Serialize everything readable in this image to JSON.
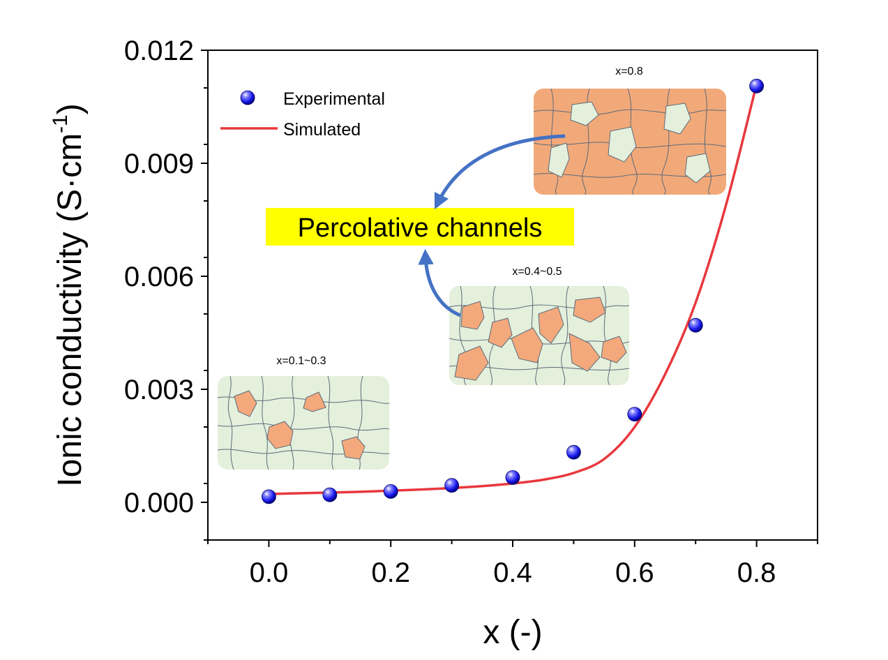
{
  "chart_data": {
    "type": "scatter",
    "xlabel": "x (-)",
    "ylabel_main": "Ionic conductivity (S·cm",
    "ylabel_sup": "-1",
    "ylabel_close": ")",
    "xlim": [
      -0.1,
      0.9
    ],
    "ylim": [
      -0.001,
      0.012
    ],
    "x_ticks": [
      "0.0",
      "0.2",
      "0.4",
      "0.6",
      "0.8"
    ],
    "x_tick_values": [
      0.0,
      0.2,
      0.4,
      0.6,
      0.8
    ],
    "y_ticks": [
      "0.000",
      "0.003",
      "0.006",
      "0.009",
      "0.012"
    ],
    "y_tick_values": [
      0.0,
      0.003,
      0.006,
      0.009,
      0.012
    ],
    "series": [
      {
        "name": "Experimental",
        "kind": "scatter",
        "color": "#1a1aee",
        "x": [
          0.0,
          0.1,
          0.2,
          0.3,
          0.4,
          0.5,
          0.6,
          0.7,
          0.8
        ],
        "y": [
          0.00015,
          0.0002,
          0.00029,
          0.00045,
          0.00066,
          0.00133,
          0.00234,
          0.0047,
          0.01105
        ]
      },
      {
        "name": "Simulated",
        "kind": "line",
        "color": "#e8383d",
        "x": [
          0.0,
          0.05,
          0.1,
          0.15,
          0.2,
          0.25,
          0.3,
          0.35,
          0.4,
          0.45,
          0.5,
          0.55,
          0.6,
          0.65,
          0.7,
          0.75,
          0.8
        ],
        "y": [
          0.00022,
          0.00024,
          0.00026,
          0.00028,
          0.00031,
          0.00034,
          0.00038,
          0.00043,
          0.0005,
          0.0006,
          0.00078,
          0.00115,
          0.002,
          0.0034,
          0.0053,
          0.0079,
          0.0111
        ]
      }
    ],
    "legend_position": "top-left",
    "annotations": {
      "callout": "Percolative channels",
      "callout_bg": "#ffff00",
      "insets": [
        {
          "label": "x=0.1~0.3",
          "background": "#e4f0dc",
          "grain": "#f4a97c"
        },
        {
          "label": "x=0.4~0.5",
          "background": "#e4f0dc",
          "grain": "#f4a97c"
        },
        {
          "label": "x=0.8",
          "background": "#f2a979",
          "grain": "#e4f0dc"
        }
      ],
      "arrow_color": "#4472c4"
    }
  }
}
